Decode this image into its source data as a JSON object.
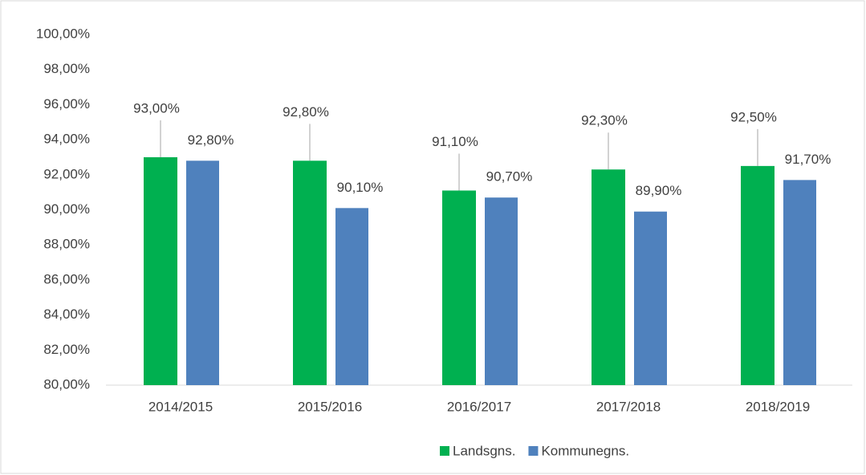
{
  "chart_data": {
    "type": "bar",
    "categories": [
      "2014/2015",
      "2015/2016",
      "2016/2017",
      "2017/2018",
      "2018/2019"
    ],
    "series": [
      {
        "name": "Landsgns.",
        "color": "#00b050",
        "values": [
          93.0,
          92.8,
          91.1,
          92.3,
          92.5
        ],
        "value_labels": [
          "93,00%",
          "92,80%",
          "91,10%",
          "92,30%",
          "92,50%"
        ]
      },
      {
        "name": "Kommunegns.",
        "color": "#4f81bd",
        "values": [
          92.8,
          90.1,
          90.7,
          89.9,
          91.7
        ],
        "value_labels": [
          "92,80%",
          "90,10%",
          "90,70%",
          "89,90%",
          "91,70%"
        ]
      }
    ],
    "ylim": [
      80,
      100
    ],
    "yticks": [
      {
        "value": 80,
        "label": "80,00%"
      },
      {
        "value": 82,
        "label": "82,00%"
      },
      {
        "value": 84,
        "label": "84,00%"
      },
      {
        "value": 86,
        "label": "86,00%"
      },
      {
        "value": 88,
        "label": "88,00%"
      },
      {
        "value": 90,
        "label": "90,00%"
      },
      {
        "value": 92,
        "label": "92,00%"
      },
      {
        "value": 94,
        "label": "94,00%"
      },
      {
        "value": 96,
        "label": "96,00%"
      },
      {
        "value": 98,
        "label": "98,00%"
      },
      {
        "value": 100,
        "label": "100,00%"
      }
    ],
    "grid": false,
    "legend": "bottom"
  }
}
